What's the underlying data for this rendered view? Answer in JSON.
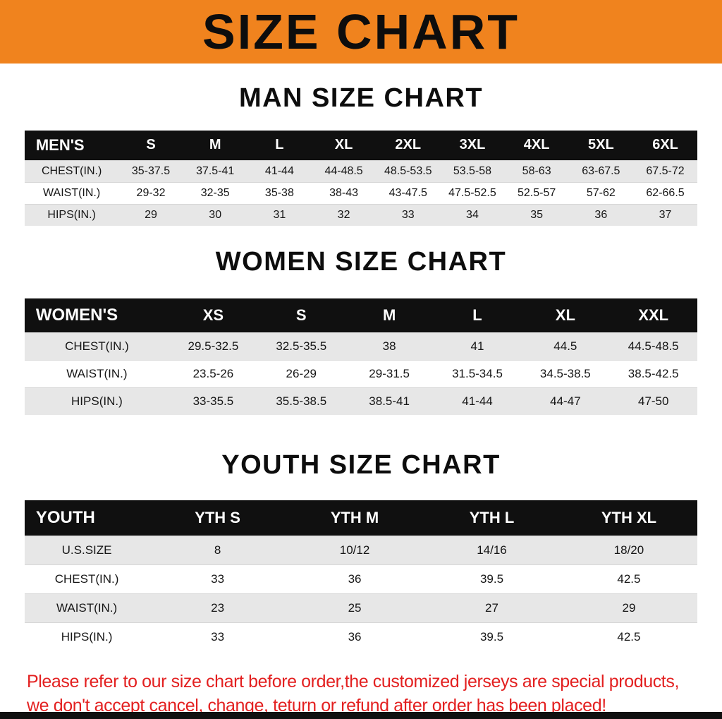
{
  "banner": {
    "title": "SIZE CHART",
    "bg_color": "#f0831e",
    "text_color": "#0d0d0d"
  },
  "colors": {
    "table_header_bg": "#101010",
    "table_header_text": "#ffffff",
    "stripe_gray": "#e7e7e7",
    "notice_red": "#e32020"
  },
  "chart_data": [
    {
      "type": "table",
      "title": "MAN SIZE CHART",
      "columns": [
        "MEN'S",
        "S",
        "M",
        "L",
        "XL",
        "2XL",
        "3XL",
        "4XL",
        "5XL",
        "6XL"
      ],
      "rows": [
        [
          "CHEST(IN.)",
          "35-37.5",
          "37.5-41",
          "41-44",
          "44-48.5",
          "48.5-53.5",
          "53.5-58",
          "58-63",
          "63-67.5",
          "67.5-72"
        ],
        [
          "WAIST(IN.)",
          "29-32",
          "32-35",
          "35-38",
          "38-43",
          "43-47.5",
          "47.5-52.5",
          "52.5-57",
          "57-62",
          "62-66.5"
        ],
        [
          "HIPS(IN.)",
          "29",
          "30",
          "31",
          "32",
          "33",
          "34",
          "35",
          "36",
          "37"
        ]
      ]
    },
    {
      "type": "table",
      "title": "WOMEN SIZE CHART",
      "columns": [
        "WOMEN'S",
        "XS",
        "S",
        "M",
        "L",
        "XL",
        "XXL"
      ],
      "rows": [
        [
          "CHEST(IN.)",
          "29.5-32.5",
          "32.5-35.5",
          "38",
          "41",
          "44.5",
          "44.5-48.5"
        ],
        [
          "WAIST(IN.)",
          "23.5-26",
          "26-29",
          "29-31.5",
          "31.5-34.5",
          "34.5-38.5",
          "38.5-42.5"
        ],
        [
          "HIPS(IN.)",
          "33-35.5",
          "35.5-38.5",
          "38.5-41",
          "41-44",
          "44-47",
          "47-50"
        ]
      ]
    },
    {
      "type": "table",
      "title": "YOUTH SIZE CHART",
      "columns": [
        "YOUTH",
        "YTH S",
        "YTH M",
        "YTH L",
        "YTH XL"
      ],
      "rows": [
        [
          "U.S.SIZE",
          "8",
          "10/12",
          "14/16",
          "18/20"
        ],
        [
          "CHEST(IN.)",
          "33",
          "36",
          "39.5",
          "42.5"
        ],
        [
          "WAIST(IN.)",
          "23",
          "25",
          "27",
          "29"
        ],
        [
          "HIPS(IN.)",
          "33",
          "36",
          "39.5",
          "42.5"
        ]
      ]
    }
  ],
  "footer": {
    "lines": [
      "Please refer to our size chart before order,the customized jerseys are special products,",
      "we don't accept cancel, change, teturn or refund after order has been placed!"
    ]
  }
}
